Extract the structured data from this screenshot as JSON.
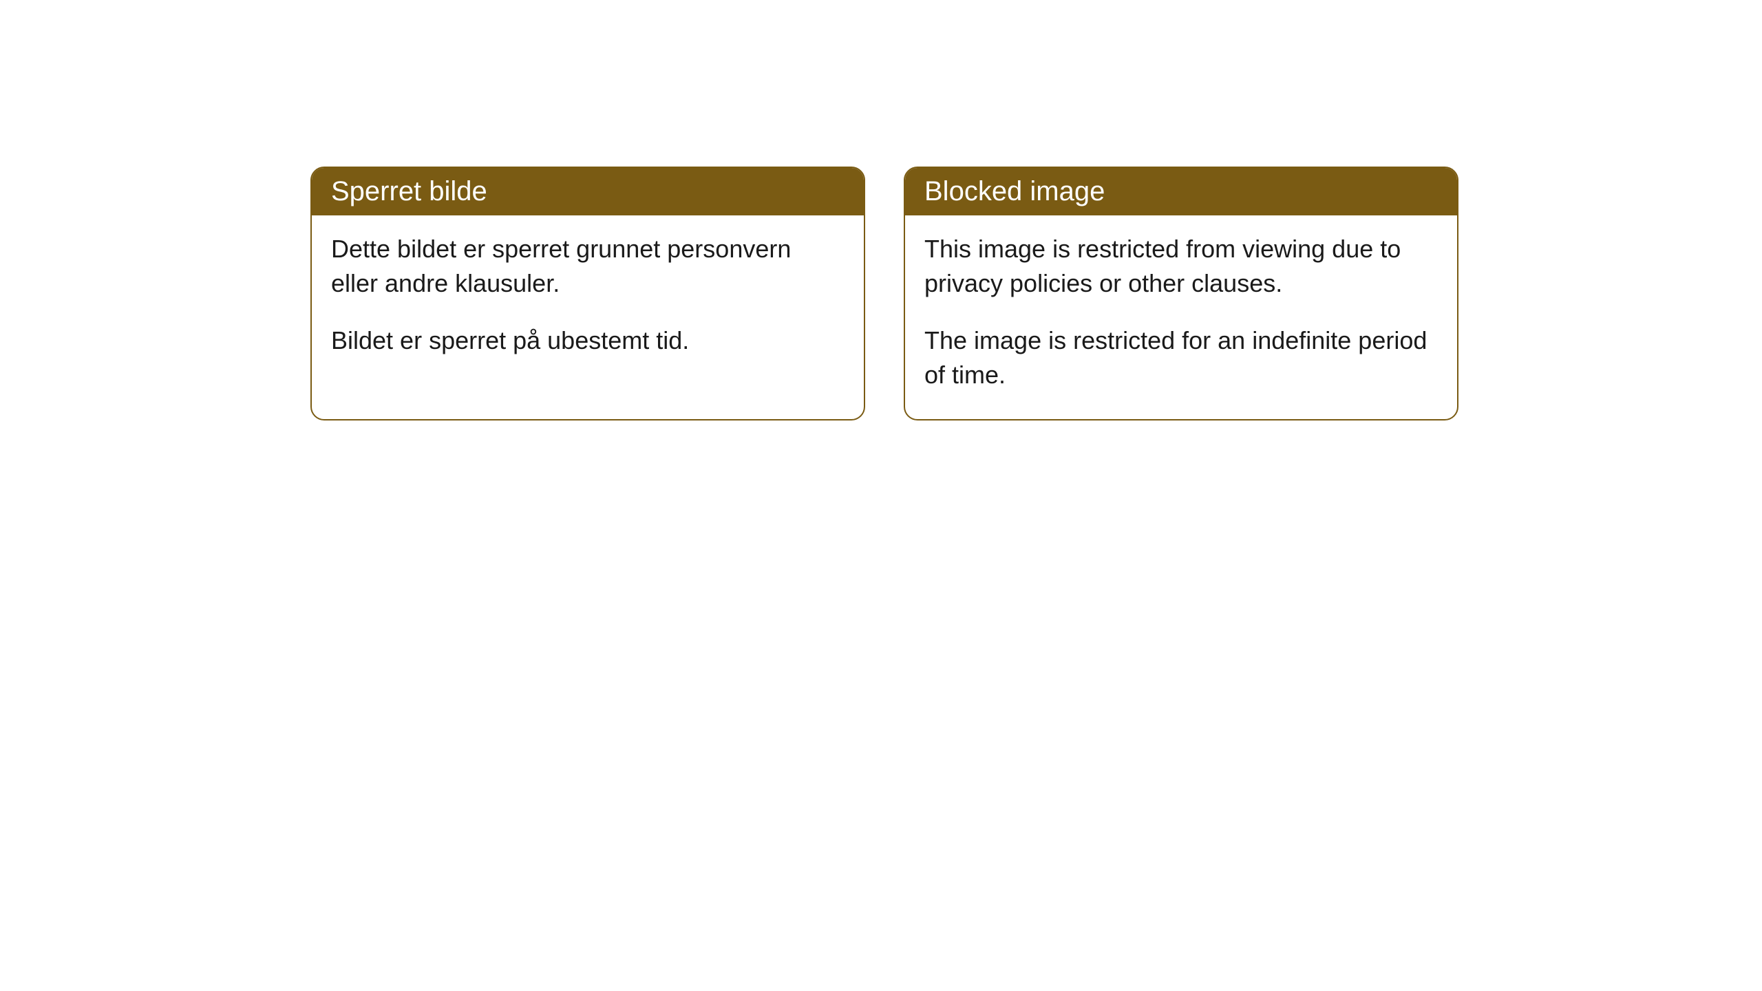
{
  "cards": [
    {
      "title": "Sperret bilde",
      "paragraph1": "Dette bildet er sperret grunnet personvern eller andre klausuler.",
      "paragraph2": "Bildet er sperret på ubestemt tid."
    },
    {
      "title": "Blocked image",
      "paragraph1": "This image is restricted from viewing due to privacy policies or other clauses.",
      "paragraph2": "The image is restricted for an indefinite period of time."
    }
  ],
  "styling": {
    "header_background": "#7a5b13",
    "header_text_color": "#ffffff",
    "border_color": "#7a5b13",
    "body_background": "#ffffff",
    "body_text_color": "#1a1a1a",
    "border_radius": 20,
    "title_fontsize": 40,
    "body_fontsize": 36
  }
}
